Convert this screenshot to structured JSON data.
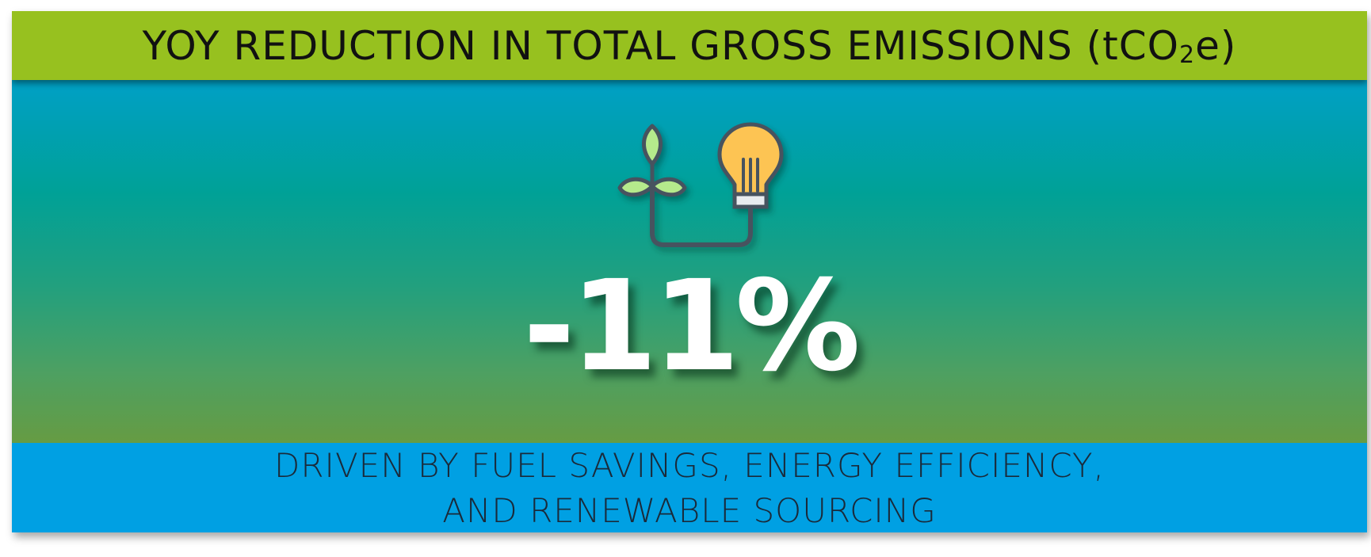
{
  "header": {
    "title_main": "YOY REDUCTION IN TOTAL GROSS EMISSIONS (tCO",
    "title_sub": "2",
    "title_end": "e)"
  },
  "metric": {
    "value": "-11%"
  },
  "icon": {
    "name": "plant-lightbulb-icon"
  },
  "footer": {
    "line1": "DRIVEN BY FUEL SAVINGS, ENERGY EFFICIENCY,",
    "line2": "AND RENEWABLE SOURCING"
  },
  "colors": {
    "header_bg": "#97c11f",
    "footer_bg": "#00a0e3",
    "gradient_top": "#00a0c6",
    "gradient_bottom": "#6a9b3e",
    "leaf": "#b5ea8c",
    "bulb": "#fdc453",
    "outline": "#47535f"
  }
}
